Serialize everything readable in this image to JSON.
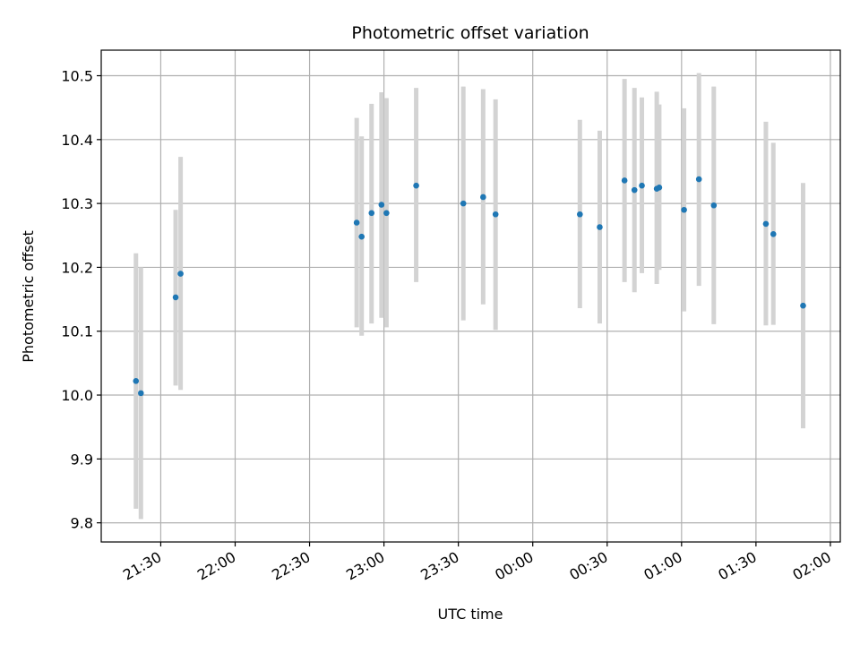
{
  "chart_data": {
    "type": "scatter",
    "title": "Photometric offset variation",
    "xlabel": "UTC time",
    "ylabel": "Photometric offset",
    "x_axis": "time",
    "x_ticks": [
      "21:30",
      "22:00",
      "22:30",
      "23:00",
      "23:30",
      "00:00",
      "00:30",
      "01:00",
      "01:30",
      "02:00"
    ],
    "y_ticks": [
      "9.8",
      "9.9",
      "10.0",
      "10.1",
      "10.2",
      "10.3",
      "10.4",
      "10.5"
    ],
    "xlim": [
      "21:06",
      "02:04"
    ],
    "ylim": [
      9.77,
      10.54
    ],
    "grid": true,
    "colors": {
      "point": "#1f77b4",
      "errorbar": "#d3d3d3",
      "grid": "#b0b0b0"
    },
    "points": [
      {
        "time": "21:20",
        "value": 10.022,
        "err_low": 9.822,
        "err_high": 10.222
      },
      {
        "time": "21:22",
        "value": 10.003,
        "err_low": 9.806,
        "err_high": 10.2
      },
      {
        "time": "21:36",
        "value": 10.153,
        "err_low": 10.015,
        "err_high": 10.29
      },
      {
        "time": "21:38",
        "value": 10.19,
        "err_low": 10.008,
        "err_high": 10.373
      },
      {
        "time": "22:49",
        "value": 10.27,
        "err_low": 10.106,
        "err_high": 10.434
      },
      {
        "time": "22:51",
        "value": 10.248,
        "err_low": 10.093,
        "err_high": 10.405
      },
      {
        "time": "22:55",
        "value": 10.285,
        "err_low": 10.112,
        "err_high": 10.456
      },
      {
        "time": "22:59",
        "value": 10.298,
        "err_low": 10.121,
        "err_high": 10.474
      },
      {
        "time": "23:01",
        "value": 10.285,
        "err_low": 10.106,
        "err_high": 10.465
      },
      {
        "time": "23:13",
        "value": 10.328,
        "err_low": 10.177,
        "err_high": 10.481
      },
      {
        "time": "23:32",
        "value": 10.3,
        "err_low": 10.117,
        "err_high": 10.483
      },
      {
        "time": "23:40",
        "value": 10.31,
        "err_low": 10.142,
        "err_high": 10.479
      },
      {
        "time": "23:45",
        "value": 10.283,
        "err_low": 10.102,
        "err_high": 10.463
      },
      {
        "time": "00:19",
        "value": 10.283,
        "err_low": 10.136,
        "err_high": 10.431
      },
      {
        "time": "00:27",
        "value": 10.263,
        "err_low": 10.112,
        "err_high": 10.414
      },
      {
        "time": "00:37",
        "value": 10.336,
        "err_low": 10.177,
        "err_high": 10.495
      },
      {
        "time": "00:41",
        "value": 10.321,
        "err_low": 10.161,
        "err_high": 10.481
      },
      {
        "time": "00:44",
        "value": 10.328,
        "err_low": 10.191,
        "err_high": 10.466
      },
      {
        "time": "00:50",
        "value": 10.323,
        "err_low": 10.174,
        "err_high": 10.475
      },
      {
        "time": "00:51",
        "value": 10.325,
        "err_low": 10.196,
        "err_high": 10.455
      },
      {
        "time": "01:01",
        "value": 10.29,
        "err_low": 10.131,
        "err_high": 10.449
      },
      {
        "time": "01:07",
        "value": 10.338,
        "err_low": 10.171,
        "err_high": 10.504
      },
      {
        "time": "01:13",
        "value": 10.297,
        "err_low": 10.111,
        "err_high": 10.483
      },
      {
        "time": "01:34",
        "value": 10.268,
        "err_low": 10.109,
        "err_high": 10.428
      },
      {
        "time": "01:37",
        "value": 10.252,
        "err_low": 10.11,
        "err_high": 10.395
      },
      {
        "time": "01:49",
        "value": 10.14,
        "err_low": 9.948,
        "err_high": 10.332
      }
    ]
  }
}
